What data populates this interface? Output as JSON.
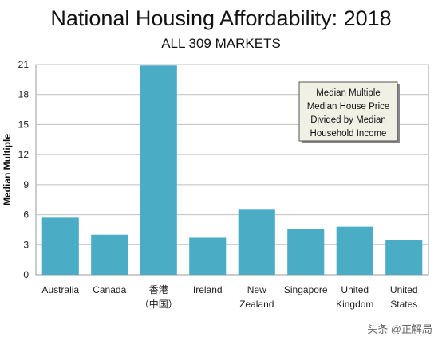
{
  "chart_data": {
    "type": "bar",
    "title": "National Housing Affordability: 2018",
    "subtitle": "ALL 309 MARKETS",
    "ylabel": "Median Multiple",
    "xlabel": "",
    "ylim": [
      0,
      21
    ],
    "yticks": [
      "0",
      "3",
      "6",
      "9",
      "12",
      "15",
      "18",
      "21"
    ],
    "grid": true,
    "categories": [
      {
        "lines": [
          "Australia"
        ],
        "color": "#222222"
      },
      {
        "lines": [
          "Canada"
        ],
        "color": "#222222"
      },
      {
        "lines": [
          "香港",
          "（中国）"
        ],
        "color": "#cc2222"
      },
      {
        "lines": [
          "Ireland"
        ],
        "color": "#222222"
      },
      {
        "lines": [
          "New",
          "Zealand"
        ],
        "color": "#222222"
      },
      {
        "lines": [
          "Singapore"
        ],
        "color": "#222222"
      },
      {
        "lines": [
          "United",
          "Kingdom"
        ],
        "color": "#222222"
      },
      {
        "lines": [
          "United",
          "States"
        ],
        "color": "#222222"
      }
    ],
    "values": [
      5.7,
      4.0,
      20.9,
      3.7,
      6.5,
      4.6,
      4.8,
      3.5
    ],
    "bar_color": "#4bacc6",
    "annotation": [
      "Median Multiple",
      "Median House Price",
      "Divided by Median",
      "Household Income"
    ]
  },
  "watermark": "头条 @正解局"
}
